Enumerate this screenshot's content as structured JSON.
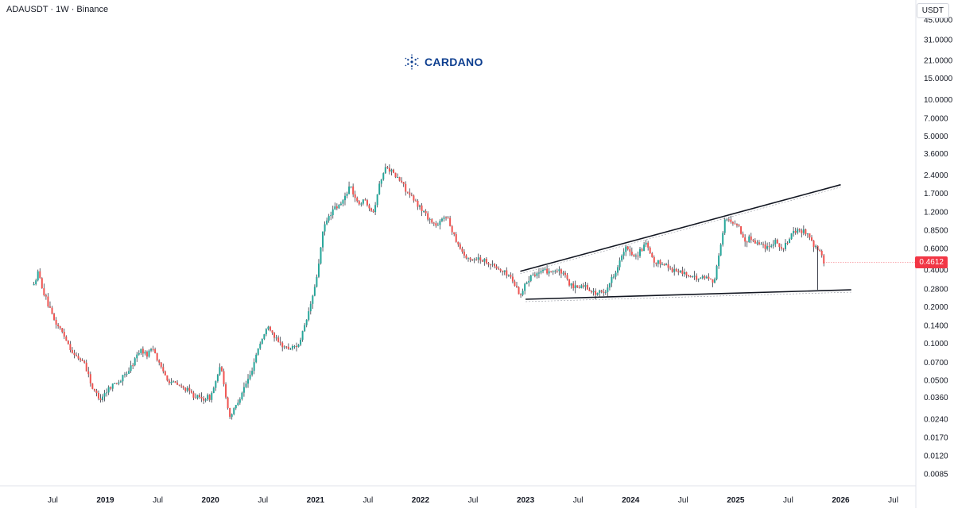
{
  "header": {
    "symbol": "ADAUSDT · 1W · Binance"
  },
  "brand": {
    "name": "CARDANO",
    "icon": "cardano-logo-icon",
    "color": "#0d3e8f"
  },
  "currency": "USDT",
  "last_price": {
    "label": "0.4612",
    "color": "#f23645"
  },
  "colors": {
    "up": "#26a69a",
    "down": "#ef5350",
    "wick": "#363a45",
    "trendline": "#131722"
  },
  "chart_data": {
    "type": "candlestick",
    "interval": "1W",
    "scale": "log",
    "grid": false,
    "y_ticks": [
      "45.0000",
      "31.0000",
      "21.0000",
      "15.0000",
      "10.0000",
      "7.0000",
      "5.0000",
      "3.6000",
      "2.4000",
      "1.7000",
      "1.2000",
      "0.8500",
      "0.6000",
      "0.4000",
      "0.2800",
      "0.2000",
      "0.1400",
      "0.1000",
      "0.0700",
      "0.0500",
      "0.0360",
      "0.0240",
      "0.0170",
      "0.0120",
      "0.0085"
    ],
    "x_ticks": [
      "Jul",
      "2019",
      "Jul",
      "2020",
      "Jul",
      "2021",
      "Jul",
      "2022",
      "Jul",
      "2023",
      "Jul",
      "2024",
      "Jul",
      "2025",
      "Jul",
      "2026",
      "Jul"
    ],
    "x_tick_dates": [
      2018.5,
      2019.0,
      2019.5,
      2020.0,
      2020.5,
      2021.0,
      2021.5,
      2022.0,
      2022.5,
      2023.0,
      2023.5,
      2024.0,
      2024.5,
      2025.0,
      2025.5,
      2026.0,
      2026.5
    ],
    "x_range": [
      2018.3,
      2026.7
    ],
    "price_path": [
      {
        "t": 2018.32,
        "p": 0.3
      },
      {
        "t": 2018.36,
        "p": 0.38
      },
      {
        "t": 2018.42,
        "p": 0.25
      },
      {
        "t": 2018.5,
        "p": 0.16
      },
      {
        "t": 2018.6,
        "p": 0.12
      },
      {
        "t": 2018.7,
        "p": 0.08
      },
      {
        "t": 2018.8,
        "p": 0.07
      },
      {
        "t": 2018.88,
        "p": 0.042
      },
      {
        "t": 2018.95,
        "p": 0.035
      },
      {
        "t": 2019.05,
        "p": 0.045
      },
      {
        "t": 2019.15,
        "p": 0.05
      },
      {
        "t": 2019.25,
        "p": 0.065
      },
      {
        "t": 2019.33,
        "p": 0.09
      },
      {
        "t": 2019.4,
        "p": 0.08
      },
      {
        "t": 2019.45,
        "p": 0.095
      },
      {
        "t": 2019.52,
        "p": 0.065
      },
      {
        "t": 2019.6,
        "p": 0.05
      },
      {
        "t": 2019.7,
        "p": 0.045
      },
      {
        "t": 2019.8,
        "p": 0.04
      },
      {
        "t": 2019.9,
        "p": 0.035
      },
      {
        "t": 2020.0,
        "p": 0.036
      },
      {
        "t": 2020.1,
        "p": 0.065
      },
      {
        "t": 2020.18,
        "p": 0.025
      },
      {
        "t": 2020.22,
        "p": 0.028
      },
      {
        "t": 2020.3,
        "p": 0.04
      },
      {
        "t": 2020.38,
        "p": 0.055
      },
      {
        "t": 2020.45,
        "p": 0.09
      },
      {
        "t": 2020.55,
        "p": 0.14
      },
      {
        "t": 2020.65,
        "p": 0.1
      },
      {
        "t": 2020.75,
        "p": 0.09
      },
      {
        "t": 2020.85,
        "p": 0.1
      },
      {
        "t": 2020.92,
        "p": 0.16
      },
      {
        "t": 2021.0,
        "p": 0.3
      },
      {
        "t": 2021.08,
        "p": 0.9
      },
      {
        "t": 2021.15,
        "p": 1.2
      },
      {
        "t": 2021.25,
        "p": 1.4
      },
      {
        "t": 2021.33,
        "p": 2.0
      },
      {
        "t": 2021.4,
        "p": 1.4
      },
      {
        "t": 2021.47,
        "p": 1.5
      },
      {
        "t": 2021.55,
        "p": 1.2
      },
      {
        "t": 2021.62,
        "p": 2.2
      },
      {
        "t": 2021.68,
        "p": 2.9
      },
      {
        "t": 2021.75,
        "p": 2.4
      },
      {
        "t": 2021.82,
        "p": 2.1
      },
      {
        "t": 2021.9,
        "p": 1.6
      },
      {
        "t": 2022.0,
        "p": 1.3
      },
      {
        "t": 2022.08,
        "p": 1.05
      },
      {
        "t": 2022.16,
        "p": 0.9
      },
      {
        "t": 2022.24,
        "p": 1.15
      },
      {
        "t": 2022.3,
        "p": 0.85
      },
      {
        "t": 2022.38,
        "p": 0.6
      },
      {
        "t": 2022.45,
        "p": 0.48
      },
      {
        "t": 2022.55,
        "p": 0.5
      },
      {
        "t": 2022.65,
        "p": 0.46
      },
      {
        "t": 2022.75,
        "p": 0.4
      },
      {
        "t": 2022.85,
        "p": 0.36
      },
      {
        "t": 2022.95,
        "p": 0.25
      },
      {
        "t": 2023.05,
        "p": 0.37
      },
      {
        "t": 2023.15,
        "p": 0.38
      },
      {
        "t": 2023.25,
        "p": 0.4
      },
      {
        "t": 2023.35,
        "p": 0.38
      },
      {
        "t": 2023.45,
        "p": 0.28
      },
      {
        "t": 2023.55,
        "p": 0.3
      },
      {
        "t": 2023.65,
        "p": 0.26
      },
      {
        "t": 2023.75,
        "p": 0.26
      },
      {
        "t": 2023.85,
        "p": 0.38
      },
      {
        "t": 2023.95,
        "p": 0.6
      },
      {
        "t": 2024.05,
        "p": 0.52
      },
      {
        "t": 2024.15,
        "p": 0.65
      },
      {
        "t": 2024.22,
        "p": 0.45
      },
      {
        "t": 2024.3,
        "p": 0.46
      },
      {
        "t": 2024.4,
        "p": 0.4
      },
      {
        "t": 2024.5,
        "p": 0.38
      },
      {
        "t": 2024.6,
        "p": 0.34
      },
      {
        "t": 2024.7,
        "p": 0.35
      },
      {
        "t": 2024.8,
        "p": 0.33
      },
      {
        "t": 2024.85,
        "p": 0.6
      },
      {
        "t": 2024.9,
        "p": 1.05
      },
      {
        "t": 2024.95,
        "p": 1.0
      },
      {
        "t": 2025.02,
        "p": 0.95
      },
      {
        "t": 2025.08,
        "p": 0.7
      },
      {
        "t": 2025.15,
        "p": 0.72
      },
      {
        "t": 2025.22,
        "p": 0.66
      },
      {
        "t": 2025.3,
        "p": 0.62
      },
      {
        "t": 2025.38,
        "p": 0.7
      },
      {
        "t": 2025.45,
        "p": 0.58
      },
      {
        "t": 2025.52,
        "p": 0.75
      },
      {
        "t": 2025.58,
        "p": 0.85
      },
      {
        "t": 2025.65,
        "p": 0.82
      },
      {
        "t": 2025.7,
        "p": 0.78
      },
      {
        "t": 2025.74,
        "p": 0.62
      },
      {
        "t": 2025.78,
        "p": 0.6
      },
      {
        "t": 2025.84,
        "p": 0.46
      }
    ],
    "trendlines": [
      {
        "name": "upper-resistance",
        "from": {
          "t": 2022.95,
          "p": 0.39
        },
        "to": {
          "t": 2026.0,
          "p": 2.0
        }
      },
      {
        "name": "lower-support",
        "from": {
          "t": 2023.0,
          "p": 0.23
        },
        "to": {
          "t": 2026.1,
          "p": 0.275
        }
      }
    ],
    "last": 0.4612
  }
}
